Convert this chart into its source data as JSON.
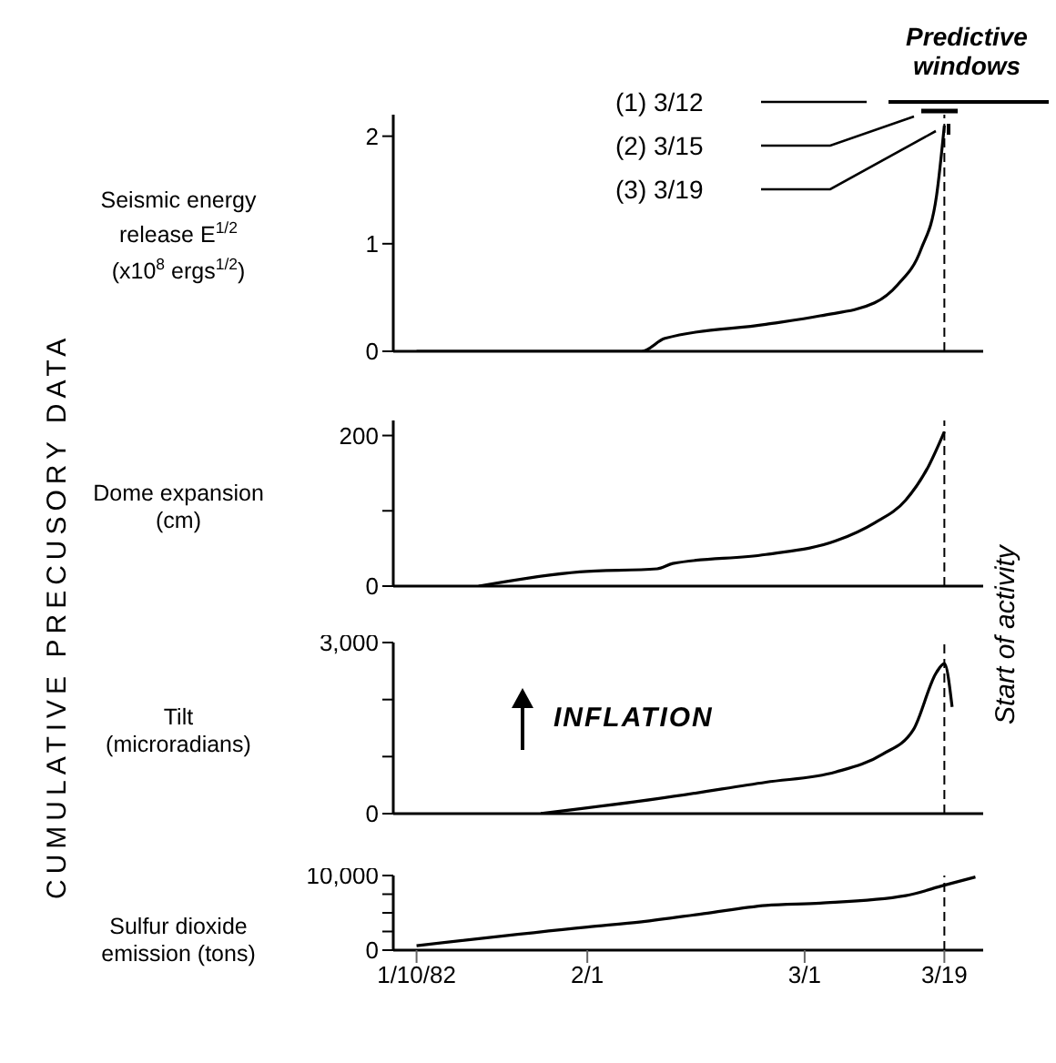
{
  "chart_data": [
    {
      "type": "line",
      "ylabel": "Seismic energy release E$^{1/2}$ (x10$^{8}$ ergs$^{1/2}$)",
      "annotations": [
        "CUMULATIVE PRECUSORY DATA",
        "Predictive windows",
        "(1) 3/12",
        "(2) 3/15",
        "(3) 3/19"
      ],
      "x": [
        "1982-01-10",
        "1982-02-08",
        "1982-02-11",
        "1982-02-24",
        "1982-03-03",
        "1982-03-10",
        "1982-03-13",
        "1982-03-16",
        "1982-03-18",
        "1982-03-19"
      ],
      "series": [
        {
          "color": "#000000",
          "values": [
            0,
            0,
            0.12,
            0.25,
            0.33,
            0.45,
            0.62,
            0.95,
            1.45,
            2.1
          ]
        }
      ],
      "xlim": [
        "1982-01-07",
        "1982-03-24"
      ],
      "ylim": [
        0,
        2.2
      ],
      "yticks": [
        0,
        1,
        2
      ],
      "tick_labels": "y",
      "marker": "none",
      "line_style": "solid",
      "ref_lines": [
        {
          "axis": "x",
          "value": "1982-03-19",
          "line_style": "dashed",
          "color": "#000000"
        }
      ]
    },
    {
      "type": "line",
      "ylabel": "Dome expansion (cm)",
      "x": [
        "1982-01-18",
        "1982-01-31",
        "1982-02-10",
        "1982-02-12",
        "1982-02-24",
        "1982-03-05",
        "1982-03-10",
        "1982-03-14",
        "1982-03-17",
        "1982-03-19"
      ],
      "series": [
        {
          "color": "#000000",
          "values": [
            0,
            19,
            23,
            30,
            42,
            60,
            84,
            114,
            160,
            205
          ]
        }
      ],
      "xlim": [
        "1982-01-07",
        "1982-03-24"
      ],
      "ylim": [
        0,
        220
      ],
      "yticks": [
        0,
        {
          "value": 100,
          "label": null
        },
        200
      ],
      "tick_labels": "y",
      "marker": "none",
      "line_style": "solid",
      "ref_lines": [
        {
          "axis": "x",
          "value": "1982-03-19",
          "line_style": "dashed",
          "color": "#000000"
        }
      ]
    },
    {
      "type": "line",
      "ylabel": "Tilt (microradians)",
      "annotations": [
        "INFLATION"
      ],
      "x": [
        "1982-01-26",
        "1982-02-10",
        "1982-02-24",
        "1982-03-05",
        "1982-03-11",
        "1982-03-15",
        "1982-03-18",
        "1982-03-19",
        "1982-03-20"
      ],
      "series": [
        {
          "color": "#000000",
          "values": [
            0,
            260,
            550,
            730,
            1040,
            1470,
            2480,
            2630,
            1870
          ]
        }
      ],
      "xlim": [
        "1982-01-07",
        "1982-03-24"
      ],
      "ylim": [
        0,
        3000
      ],
      "yticks": [
        0,
        {
          "value": 1000,
          "label": null
        },
        {
          "value": 2000,
          "label": null
        },
        {
          "value": 3000,
          "label": "3,000"
        }
      ],
      "tick_labels": "y",
      "marker": "none",
      "line_style": "solid",
      "ref_lines": [
        {
          "axis": "x",
          "value": "1982-03-19",
          "line_style": "dashed",
          "color": "#000000",
          "label": "Start of activity"
        }
      ]
    },
    {
      "type": "line",
      "ylabel": "Sulfur dioxide emission (tons)",
      "x": [
        "1982-01-10",
        "1982-02-01",
        "1982-02-08",
        "1982-02-16",
        "1982-02-24",
        "1982-03-03",
        "1982-03-14",
        "1982-03-19",
        "1982-03-23"
      ],
      "series": [
        {
          "color": "#000000",
          "values": [
            600,
            3100,
            3800,
            4900,
            6000,
            6300,
            7300,
            8700,
            9800
          ]
        }
      ],
      "xlim": [
        "1982-01-07",
        "1982-03-24"
      ],
      "ylim": [
        0,
        10000
      ],
      "yticks": [
        0,
        {
          "value": 2500,
          "label": null
        },
        {
          "value": 5000,
          "label": null
        },
        {
          "value": 7500,
          "label": null
        },
        {
          "value": 10000,
          "label": "10,000"
        }
      ],
      "xticks": [
        {
          "value": "1982-01-10",
          "label": "1/10/82"
        },
        {
          "value": "1982-02-01",
          "label": "2/1"
        },
        {
          "value": "1982-03-01",
          "label": "3/1"
        },
        {
          "value": "1982-03-19",
          "label": "3/19"
        }
      ],
      "marker": "none",
      "line_style": "solid",
      "ref_lines": [
        {
          "axis": "x",
          "value": "1982-03-19",
          "line_style": "dashed",
          "color": "#000000"
        }
      ]
    }
  ]
}
